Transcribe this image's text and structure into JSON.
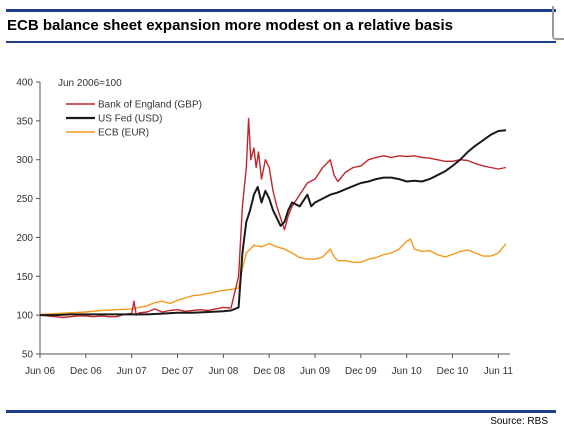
{
  "header": {
    "title": "ECB balance sheet expansion more modest on a relative basis"
  },
  "footer": {
    "source": "Source: RBS"
  },
  "chart_data": {
    "type": "line",
    "note": "Jun 2006=100",
    "ylim": [
      50,
      400
    ],
    "yticks": [
      50,
      100,
      150,
      200,
      250,
      300,
      350,
      400
    ],
    "xlim": [
      0,
      61
    ],
    "xticks": [
      {
        "label": "Jun 06",
        "x": 0
      },
      {
        "label": "Dec 06",
        "x": 6
      },
      {
        "label": "Jun 07",
        "x": 12
      },
      {
        "label": "Dec 07",
        "x": 18
      },
      {
        "label": "Jun 08",
        "x": 24
      },
      {
        "label": "Dec 08",
        "x": 30
      },
      {
        "label": "Jun 09",
        "x": 36
      },
      {
        "label": "Dec 09",
        "x": 42
      },
      {
        "label": "Jun 10",
        "x": 48
      },
      {
        "label": "Dec 10",
        "x": 54
      },
      {
        "label": "Jun 11",
        "x": 60
      }
    ],
    "legend_position": "top-left",
    "series": [
      {
        "name": "Bank of England (GBP)",
        "color": "#c0272d",
        "points": [
          [
            0,
            100
          ],
          [
            1,
            99
          ],
          [
            2,
            98
          ],
          [
            3,
            97
          ],
          [
            4,
            98
          ],
          [
            5,
            99
          ],
          [
            6,
            99
          ],
          [
            7,
            98
          ],
          [
            8,
            99
          ],
          [
            9,
            98
          ],
          [
            10,
            98
          ],
          [
            11,
            101
          ],
          [
            12,
            102
          ],
          [
            12.3,
            118
          ],
          [
            12.6,
            100
          ],
          [
            13,
            103
          ],
          [
            14,
            104
          ],
          [
            15,
            108
          ],
          [
            16,
            104
          ],
          [
            17,
            106
          ],
          [
            18,
            107
          ],
          [
            19,
            105
          ],
          [
            20,
            106
          ],
          [
            21,
            107
          ],
          [
            22,
            106
          ],
          [
            23,
            108
          ],
          [
            24,
            110
          ],
          [
            25,
            109
          ],
          [
            26,
            150
          ],
          [
            26.5,
            240
          ],
          [
            27,
            290
          ],
          [
            27.3,
            353
          ],
          [
            27.6,
            300
          ],
          [
            28,
            315
          ],
          [
            28.3,
            290
          ],
          [
            28.6,
            310
          ],
          [
            29,
            275
          ],
          [
            29.5,
            300
          ],
          [
            30,
            290
          ],
          [
            30.5,
            260
          ],
          [
            31,
            240
          ],
          [
            31.5,
            225
          ],
          [
            32,
            210
          ],
          [
            32.5,
            228
          ],
          [
            33,
            240
          ],
          [
            34,
            255
          ],
          [
            35,
            270
          ],
          [
            36,
            275
          ],
          [
            37,
            290
          ],
          [
            38,
            300
          ],
          [
            38.5,
            280
          ],
          [
            39,
            272
          ],
          [
            40,
            284
          ],
          [
            41,
            290
          ],
          [
            42,
            292
          ],
          [
            43,
            300
          ],
          [
            44,
            303
          ],
          [
            45,
            305
          ],
          [
            46,
            303
          ],
          [
            47,
            305
          ],
          [
            48,
            304
          ],
          [
            49,
            305
          ],
          [
            50,
            303
          ],
          [
            51,
            302
          ],
          [
            52,
            300
          ],
          [
            53,
            298
          ],
          [
            54,
            298
          ],
          [
            55,
            300
          ],
          [
            56,
            299
          ],
          [
            57,
            295
          ],
          [
            58,
            292
          ],
          [
            59,
            290
          ],
          [
            60,
            288
          ],
          [
            61,
            290
          ]
        ]
      },
      {
        "name": "US Fed (USD)",
        "color": "#1a1a1a",
        "points": [
          [
            0,
            100
          ],
          [
            2,
            100
          ],
          [
            4,
            101
          ],
          [
            6,
            101
          ],
          [
            8,
            101
          ],
          [
            10,
            101
          ],
          [
            12,
            101
          ],
          [
            14,
            101
          ],
          [
            16,
            102
          ],
          [
            18,
            103
          ],
          [
            20,
            103
          ],
          [
            22,
            104
          ],
          [
            24,
            105
          ],
          [
            25,
            106
          ],
          [
            26,
            110
          ],
          [
            26.5,
            180
          ],
          [
            27,
            220
          ],
          [
            27.5,
            235
          ],
          [
            28,
            255
          ],
          [
            28.5,
            265
          ],
          [
            29,
            245
          ],
          [
            29.5,
            260
          ],
          [
            30,
            250
          ],
          [
            30.5,
            235
          ],
          [
            31,
            225
          ],
          [
            31.5,
            215
          ],
          [
            32,
            220
          ],
          [
            32.5,
            235
          ],
          [
            33,
            245
          ],
          [
            34,
            240
          ],
          [
            35,
            255
          ],
          [
            35.5,
            240
          ],
          [
            36,
            245
          ],
          [
            37,
            250
          ],
          [
            38,
            255
          ],
          [
            39,
            258
          ],
          [
            40,
            262
          ],
          [
            41,
            266
          ],
          [
            42,
            270
          ],
          [
            43,
            272
          ],
          [
            44,
            275
          ],
          [
            45,
            277
          ],
          [
            46,
            277
          ],
          [
            47,
            275
          ],
          [
            48,
            272
          ],
          [
            49,
            273
          ],
          [
            50,
            272
          ],
          [
            51,
            275
          ],
          [
            52,
            280
          ],
          [
            53,
            285
          ],
          [
            54,
            292
          ],
          [
            55,
            300
          ],
          [
            56,
            310
          ],
          [
            57,
            318
          ],
          [
            58,
            325
          ],
          [
            59,
            332
          ],
          [
            60,
            337
          ],
          [
            61,
            338
          ]
        ]
      },
      {
        "name": "ECB (EUR)",
        "color": "#f39a1e",
        "points": [
          [
            0,
            101
          ],
          [
            2,
            102
          ],
          [
            4,
            103
          ],
          [
            6,
            104
          ],
          [
            8,
            106
          ],
          [
            10,
            107
          ],
          [
            12,
            108
          ],
          [
            13,
            110
          ],
          [
            14,
            112
          ],
          [
            15,
            116
          ],
          [
            16,
            118
          ],
          [
            17,
            115
          ],
          [
            18,
            119
          ],
          [
            19,
            122
          ],
          [
            20,
            125
          ],
          [
            21,
            126
          ],
          [
            22,
            128
          ],
          [
            23,
            130
          ],
          [
            24,
            132
          ],
          [
            25,
            133
          ],
          [
            26,
            135
          ],
          [
            26.5,
            160
          ],
          [
            27,
            180
          ],
          [
            28,
            190
          ],
          [
            29,
            188
          ],
          [
            30,
            192
          ],
          [
            31,
            188
          ],
          [
            32,
            185
          ],
          [
            33,
            180
          ],
          [
            34,
            174
          ],
          [
            35,
            172
          ],
          [
            36,
            172
          ],
          [
            37,
            175
          ],
          [
            38,
            185
          ],
          [
            38.5,
            175
          ],
          [
            39,
            170
          ],
          [
            40,
            170
          ],
          [
            41,
            168
          ],
          [
            42,
            168
          ],
          [
            43,
            172
          ],
          [
            44,
            174
          ],
          [
            45,
            178
          ],
          [
            46,
            180
          ],
          [
            47,
            185
          ],
          [
            48,
            195
          ],
          [
            48.5,
            198
          ],
          [
            49,
            185
          ],
          [
            50,
            182
          ],
          [
            51,
            183
          ],
          [
            52,
            178
          ],
          [
            53,
            175
          ],
          [
            54,
            178
          ],
          [
            55,
            182
          ],
          [
            56,
            184
          ],
          [
            57,
            180
          ],
          [
            58,
            176
          ],
          [
            59,
            176
          ],
          [
            60,
            180
          ],
          [
            61,
            192
          ]
        ]
      }
    ]
  }
}
